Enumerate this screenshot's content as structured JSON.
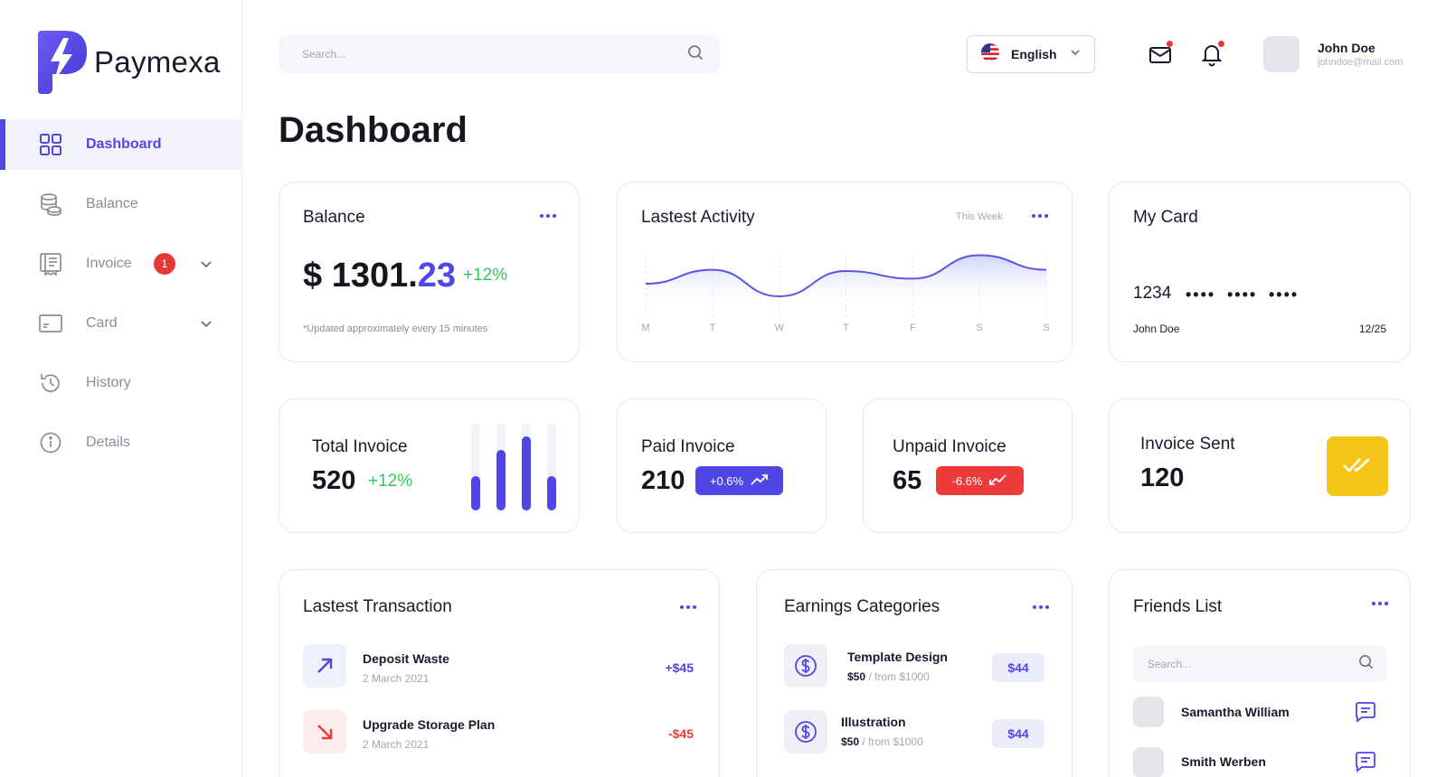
{
  "app": {
    "name": "Paymexa",
    "accent": "#4f46e5"
  },
  "sidebar": {
    "items": [
      {
        "label": "Dashboard",
        "icon": "grid-icon",
        "active": true
      },
      {
        "label": "Balance",
        "icon": "coins-icon"
      },
      {
        "label": "Invoice",
        "icon": "receipt-icon",
        "badge": "1",
        "expandable": true
      },
      {
        "label": "Card",
        "icon": "credit-card-icon",
        "expandable": true
      },
      {
        "label": "History",
        "icon": "history-icon"
      },
      {
        "label": "Details",
        "icon": "info-icon"
      }
    ]
  },
  "header": {
    "search_placeholder": "Search...",
    "language": "English",
    "user": {
      "name": "John Doe",
      "email": "johndoe@mail.com"
    }
  },
  "page": {
    "title": "Dashboard"
  },
  "balance": {
    "title": "Balance",
    "currency": "$",
    "whole": "1301.",
    "cents": "23",
    "change": "+12%",
    "note": "*Updated approximately every 15 minutes"
  },
  "activity": {
    "title": "Lastest Activity",
    "period": "This Week",
    "colors": {
      "line": "#5b54e8",
      "fill_top": "#c9cffa"
    }
  },
  "chart_data": {
    "type": "area",
    "categories": [
      "M",
      "T",
      "W",
      "T",
      "F",
      "S",
      "S"
    ],
    "values": [
      40,
      62,
      20,
      60,
      48,
      85,
      62
    ],
    "title": "Lastest Activity",
    "xlabel": "",
    "ylabel": "",
    "grid": true
  },
  "my_card": {
    "title": "My Card",
    "first_digits": "1234",
    "masked_groups": [
      "••••",
      "••••",
      "••••"
    ],
    "holder": "John Doe",
    "expiry": "12/25"
  },
  "stats": {
    "total_invoice": {
      "label": "Total Invoice",
      "value": "520",
      "change": "+12%",
      "bar_levels": [
        0.4,
        0.7,
        0.85,
        0.4
      ]
    },
    "paid_invoice": {
      "label": "Paid Invoice",
      "value": "210",
      "change": "+0.6%"
    },
    "unpaid_invoice": {
      "label": "Unpaid Invoice",
      "value": "65",
      "change": "-6.6%"
    },
    "invoice_sent": {
      "label": "Invoice Sent",
      "value": "120"
    }
  },
  "transactions": {
    "title": "Lastest Transaction",
    "rows": [
      {
        "name": "Deposit Waste",
        "date": "2 March 2021",
        "amount": "+$45",
        "direction": "up"
      },
      {
        "name": "Upgrade Storage Plan",
        "date": "2 March 2021",
        "amount": "-$45",
        "direction": "down"
      }
    ]
  },
  "earnings": {
    "title": "Earnings Categories",
    "rows": [
      {
        "name": "Template Design",
        "amount": "$50",
        "from": "/ from $1000",
        "tag": "$44"
      },
      {
        "name": "Illustration",
        "amount": "$50",
        "from": "/ from $1000",
        "tag": "$44"
      }
    ]
  },
  "friends": {
    "title": "Friends List",
    "search_placeholder": "Search...",
    "rows": [
      {
        "name": "Samantha William"
      },
      {
        "name": "Smith Werben"
      }
    ]
  }
}
